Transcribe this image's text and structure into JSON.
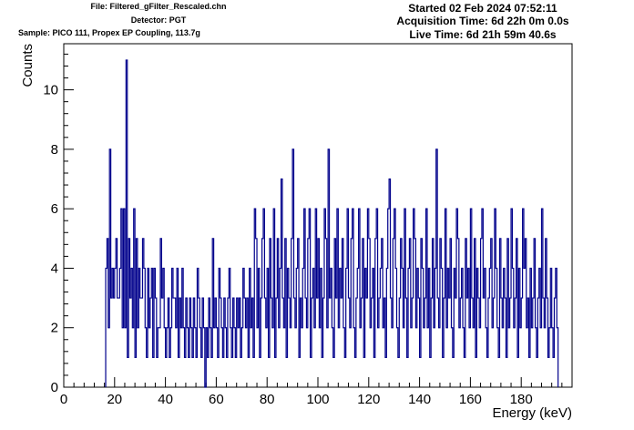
{
  "header": {
    "file": "File: Filtered_gFilter_Rescaled.chn",
    "detector": "Detector: PGT",
    "sample": "Sample: PICO 111, Propex EP Coupling, 113.7g",
    "started": "Started 02 Feb 2024 07:52:11",
    "acquisition_time": "Acquisition Time: 6d 22h 0m 0.0s",
    "live_time": "Live Time: 6d 21h 59m 40.6s"
  },
  "chart_data": {
    "type": "histogram",
    "title": "",
    "xlabel": "Energy (keV)",
    "ylabel": "Counts",
    "xlim": [
      0,
      200
    ],
    "ylim": [
      0,
      11.55
    ],
    "x_ticks": [
      0,
      20,
      40,
      60,
      80,
      100,
      120,
      140,
      160,
      180
    ],
    "y_ticks": [
      0,
      2,
      4,
      6,
      8,
      10
    ],
    "grid": false,
    "bin_start": 16.5,
    "bin_width": 0.5,
    "line_color": "#00008b",
    "series": [
      {
        "values": [
          4,
          5,
          2,
          8,
          3,
          4,
          3,
          4,
          5,
          3,
          3,
          4,
          6,
          2,
          6,
          2,
          11,
          1,
          5,
          3,
          4,
          2,
          6,
          1,
          5,
          2,
          4,
          3,
          3,
          5,
          4,
          2,
          1,
          4,
          2,
          3,
          4,
          1,
          4,
          3,
          1,
          2,
          2,
          5,
          3,
          4,
          2,
          1,
          2,
          3,
          1,
          2,
          4,
          3,
          3,
          2,
          4,
          1,
          3,
          2,
          4,
          2,
          1,
          3,
          2,
          1,
          3,
          2,
          1,
          3,
          2,
          1,
          4,
          3,
          2,
          1,
          3,
          2,
          0,
          2,
          1,
          3,
          2,
          1,
          5,
          2,
          3,
          2,
          1,
          4,
          3,
          2,
          1,
          3,
          2,
          1,
          3,
          4,
          2,
          1,
          3,
          2,
          1,
          3,
          2,
          3,
          1,
          2,
          4,
          3,
          2,
          3,
          1,
          4,
          2,
          3,
          1,
          6,
          5,
          2,
          4,
          1,
          3,
          5,
          6,
          3,
          2,
          4,
          1,
          5,
          3,
          2,
          6,
          1,
          3,
          5,
          2,
          4,
          7,
          3,
          2,
          5,
          1,
          4,
          3,
          2,
          5,
          8,
          3,
          2,
          4,
          5,
          1,
          3,
          2,
          4,
          6,
          3,
          2,
          5,
          6,
          1,
          3,
          4,
          2,
          6,
          3,
          5,
          2,
          4,
          1,
          3,
          6,
          5,
          2,
          8,
          3,
          4,
          2,
          1,
          5,
          3,
          6,
          2,
          4,
          3,
          5,
          2,
          1,
          4,
          6,
          3,
          2,
          5,
          6,
          2,
          1,
          3,
          4,
          6,
          2,
          3,
          5,
          1,
          4,
          3,
          6,
          5,
          2,
          3,
          4,
          1,
          5,
          6,
          2,
          3,
          4,
          5,
          2,
          3,
          1,
          4,
          6,
          7,
          3,
          2,
          5,
          6,
          4,
          2,
          1,
          3,
          5,
          4,
          2,
          6,
          3,
          1,
          4,
          5,
          2,
          3,
          6,
          5,
          2,
          4,
          3,
          1,
          5,
          4,
          2,
          3,
          6,
          2,
          4,
          1,
          3,
          5,
          2,
          4,
          8,
          3,
          2,
          5,
          4,
          1,
          3,
          6,
          2,
          4,
          3,
          5,
          2,
          1,
          4,
          3,
          6,
          5,
          2,
          3,
          4,
          2,
          1,
          5,
          3,
          4,
          2,
          6,
          3,
          2,
          5,
          1,
          4,
          3,
          2,
          5,
          6,
          3,
          4,
          2,
          1,
          3,
          4,
          5,
          2,
          3,
          6,
          4,
          2,
          1,
          5,
          3,
          2,
          4,
          3,
          1,
          5,
          2,
          3,
          6,
          4,
          2,
          3,
          5,
          1,
          4,
          2,
          3,
          6,
          4,
          5,
          2,
          3,
          1,
          4,
          2,
          3,
          5,
          2,
          1,
          3,
          4,
          2,
          6,
          3,
          2,
          5,
          3,
          1,
          2,
          4,
          2,
          1,
          3,
          4,
          2
        ]
      }
    ]
  }
}
